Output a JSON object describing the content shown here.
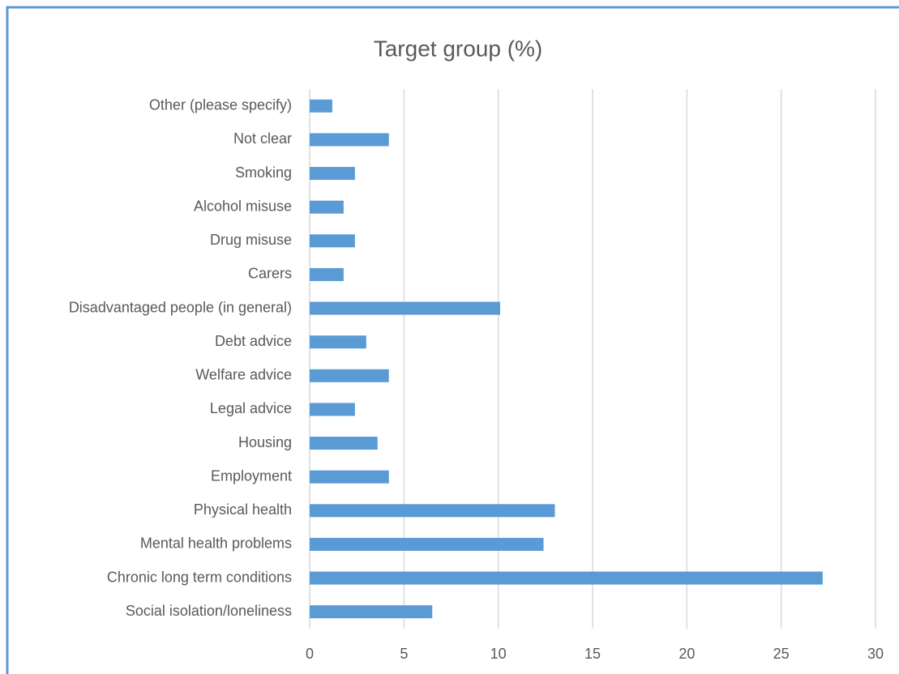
{
  "chart_data": {
    "type": "barh",
    "title": "Target group (%)",
    "categories": [
      "Social isolation/loneliness",
      "Chronic long term conditions",
      "Mental health problems",
      "Physical health",
      "Employment",
      "Housing",
      "Legal advice",
      "Welfare advice",
      "Debt advice",
      "Disadvantaged people (in general)",
      "Carers",
      "Drug misuse",
      "Alcohol misuse",
      "Smoking",
      "Not clear",
      "Other (please specify)"
    ],
    "values": [
      6.5,
      27.2,
      12.4,
      13.0,
      4.2,
      3.6,
      2.4,
      4.2,
      3.0,
      10.1,
      1.8,
      2.4,
      1.8,
      2.4,
      4.2,
      1.2
    ],
    "color": "#5b9bd5",
    "xlim": [
      0,
      30
    ],
    "xticks": [
      0,
      5,
      10,
      15,
      20,
      25,
      30
    ],
    "grid": true
  }
}
